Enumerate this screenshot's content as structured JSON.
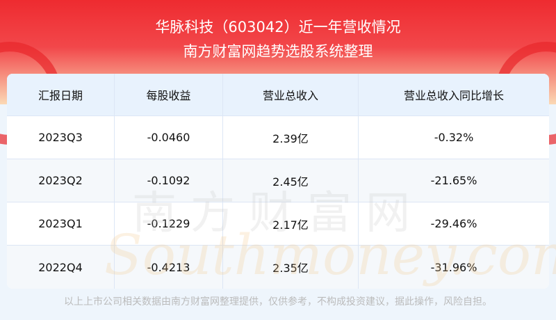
{
  "header": {
    "title": "华脉科技（603042）近一年营收情况",
    "subtitle": "南方财富网趋势选股系统整理"
  },
  "table": {
    "columns": [
      "汇报日期",
      "每股收益",
      "营业总收入",
      "营业总收入同比增长"
    ],
    "rows": [
      [
        "2023Q3",
        "-0.0460",
        "2.39亿",
        "-0.32%"
      ],
      [
        "2023Q2",
        "-0.1092",
        "2.45亿",
        "-21.65%"
      ],
      [
        "2023Q1",
        "-0.1229",
        "2.17亿",
        "-29.46%"
      ],
      [
        "2022Q4",
        "-0.4213",
        "2.35亿",
        "-31.96%"
      ]
    ]
  },
  "watermark": {
    "cn": "南方财富网",
    "en": "Southmoney.com"
  },
  "footer": "以上上市公司相关数据由南方财富网整理提供，仅供参考，不构成投资建议，据此操作，风险自担。",
  "colors": {
    "banner": "#ee2b30",
    "header_row": "#e8f2fd",
    "background": "#eef5fc"
  }
}
